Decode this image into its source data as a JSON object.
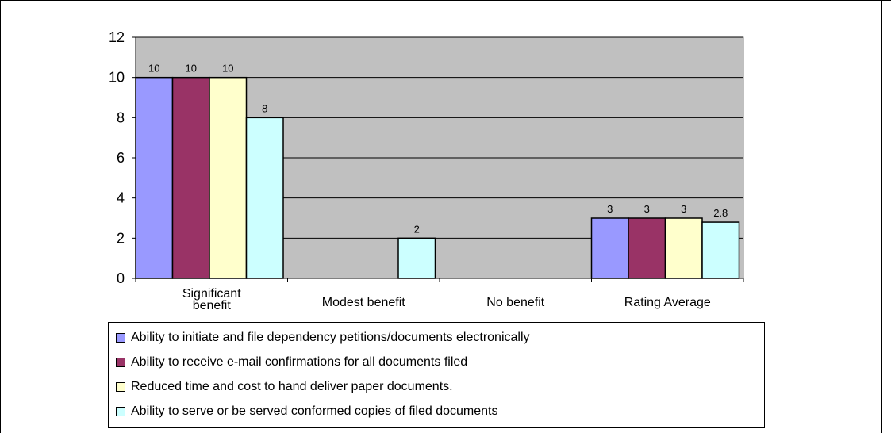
{
  "chart_data": {
    "type": "bar",
    "categories": [
      "Significant benefit",
      "Modest benefit",
      "No benefit",
      "Rating Average"
    ],
    "series": [
      {
        "name": "Ability to initiate and file dependency petitions/documents electronically",
        "color": "#9999ff",
        "values": [
          10,
          0,
          0,
          3
        ],
        "labels": [
          "10",
          "",
          "",
          "3"
        ]
      },
      {
        "name": "Ability to receive e-mail confirmations for all documents filed",
        "color": "#993366",
        "values": [
          10,
          0,
          0,
          3
        ],
        "labels": [
          "10",
          "",
          "",
          "3"
        ]
      },
      {
        "name": "Reduced time and cost to hand deliver paper documents.",
        "color": "#ffffcc",
        "values": [
          10,
          0,
          0,
          3
        ],
        "labels": [
          "10",
          "",
          "",
          "3"
        ]
      },
      {
        "name": "Ability to serve or be served conformed copies of filed documents",
        "color": "#ccffff",
        "values": [
          8,
          2,
          0,
          2.8
        ],
        "labels": [
          "8",
          "2",
          "",
          "2.8"
        ]
      }
    ],
    "category_labels": [
      [
        "Significant",
        "benefit"
      ],
      [
        "Modest benefit"
      ],
      [
        "No benefit"
      ],
      [
        "Rating Average"
      ]
    ],
    "yticks": [
      "0",
      "2",
      "4",
      "6",
      "8",
      "10",
      "12"
    ],
    "ylim": [
      0,
      12
    ],
    "grid": true,
    "plot_background": "#c0c0c0",
    "legend_position": "bottom",
    "title": "",
    "xlabel": "",
    "ylabel": ""
  }
}
